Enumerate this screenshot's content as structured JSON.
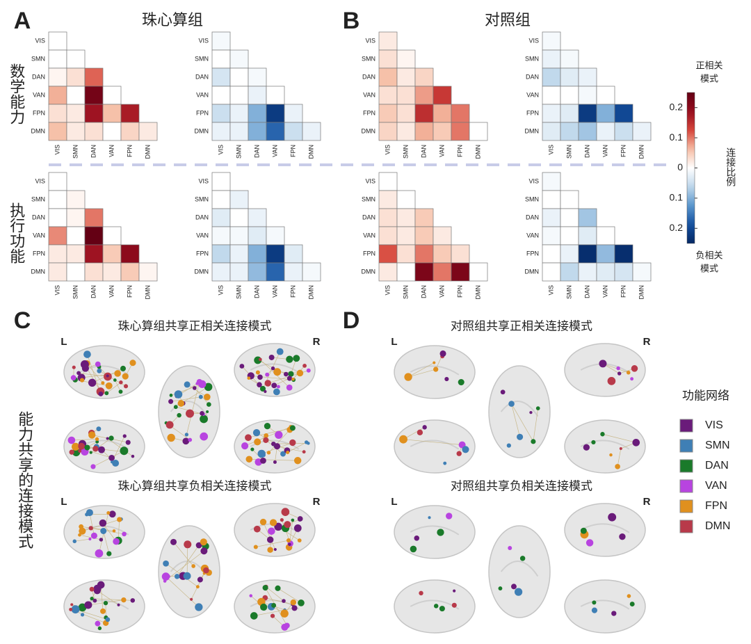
{
  "panel_labels": [
    "A",
    "B",
    "C",
    "D"
  ],
  "groups": [
    "珠心算组",
    "对照组"
  ],
  "abilities": [
    "数学能力",
    "执行功能"
  ],
  "side_label": "能力共享的连接模式",
  "networks": [
    "VIS",
    "SMN",
    "DAN",
    "VAN",
    "FPN",
    "DMN"
  ],
  "heatmaps": [
    {
      "values": [
        [
          0
        ],
        [
          0,
          0
        ],
        [
          0.01,
          0.03,
          0.11
        ],
        [
          0.07,
          0,
          0.23,
          0
        ],
        [
          0.03,
          0.02,
          0.18,
          0.06,
          0.17
        ],
        [
          0.06,
          0.02,
          0.03,
          0,
          0.04,
          0.02
        ]
      ]
    },
    {
      "values": [
        [
          -0.01
        ],
        [
          0,
          -0.01
        ],
        [
          -0.04,
          0,
          -0.01
        ],
        [
          0,
          0,
          -0.02,
          0
        ],
        [
          -0.05,
          -0.02,
          -0.1,
          -0.22,
          -0.02
        ],
        [
          -0.02,
          -0.02,
          -0.1,
          -0.17,
          -0.05,
          -0.02
        ]
      ]
    },
    {
      "values": [
        [
          0.02
        ],
        [
          0.03,
          0.01
        ],
        [
          0.06,
          0.02,
          0.04
        ],
        [
          0.03,
          0.03,
          0.08,
          0.14
        ],
        [
          0.05,
          0.03,
          0.15,
          0.07,
          0.1
        ],
        [
          0.04,
          0.02,
          0.07,
          0.05,
          0.1,
          0
        ]
      ]
    },
    {
      "values": [
        [
          -0.01
        ],
        [
          -0.02,
          -0.01
        ],
        [
          -0.06,
          -0.03,
          -0.02
        ],
        [
          0,
          0,
          -0.01,
          0
        ],
        [
          -0.02,
          -0.03,
          -0.22,
          -0.1,
          -0.2
        ],
        [
          -0.03,
          -0.06,
          -0.08,
          -0.02,
          -0.05,
          -0.02
        ]
      ]
    },
    {
      "values": [
        [
          0
        ],
        [
          0,
          0.01
        ],
        [
          0,
          0.01,
          0.1
        ],
        [
          0.09,
          0,
          0.25,
          0
        ],
        [
          0.02,
          0.02,
          0.18,
          0.05,
          0.2
        ],
        [
          0.02,
          0,
          0.03,
          0.02,
          0.05,
          0.01
        ]
      ]
    },
    {
      "values": [
        [
          0
        ],
        [
          0,
          -0.02
        ],
        [
          -0.03,
          0,
          -0.02
        ],
        [
          -0.01,
          -0.01,
          -0.03,
          -0.01
        ],
        [
          -0.06,
          -0.02,
          -0.1,
          -0.22,
          -0.03
        ],
        [
          -0.02,
          -0.02,
          -0.09,
          -0.17,
          -0.02,
          -0.01
        ]
      ]
    },
    {
      "values": [
        [
          0
        ],
        [
          0.02,
          0
        ],
        [
          0.03,
          0.02,
          0.05
        ],
        [
          0.03,
          0.02,
          0.05,
          0.02
        ],
        [
          0.12,
          0.03,
          0.1,
          0.05,
          0.03
        ],
        [
          0.02,
          0,
          0.22,
          0.1,
          0.22,
          0
        ]
      ]
    },
    {
      "values": [
        [
          -0.01
        ],
        [
          0,
          0
        ],
        [
          -0.02,
          0,
          -0.08
        ],
        [
          -0.01,
          0,
          -0.03,
          0
        ],
        [
          0,
          -0.02,
          -0.24,
          -0.09,
          -0.24
        ],
        [
          0,
          -0.06,
          -0.02,
          -0.03,
          -0.04,
          -0.01
        ]
      ]
    }
  ],
  "colorbar": {
    "top_label": [
      "正相关",
      "模式"
    ],
    "bottom_label": [
      "负相关",
      "模式"
    ],
    "axis_label": "连接比例",
    "clim": [
      -0.25,
      0.25
    ],
    "ticks": [
      0.2,
      0.1,
      0,
      {
        "value": -0.1,
        "label": "0.1"
      },
      {
        "value": -0.2,
        "label": "0.2"
      }
    ]
  },
  "brain_titles": [
    "珠心算组共享正相关连接模式",
    "珠心算组共享负相关连接模式",
    "对照组共享正相关连接模式",
    "对照组共享负相关连接模式"
  ],
  "hemisphere_labels": [
    "L",
    "R"
  ],
  "legend": {
    "title": "功能网络",
    "colors": [
      "#6a1b7a",
      "#3f7fb5",
      "#1a7a2a",
      "#b844e0",
      "#e0901e",
      "#b83a4a"
    ]
  }
}
